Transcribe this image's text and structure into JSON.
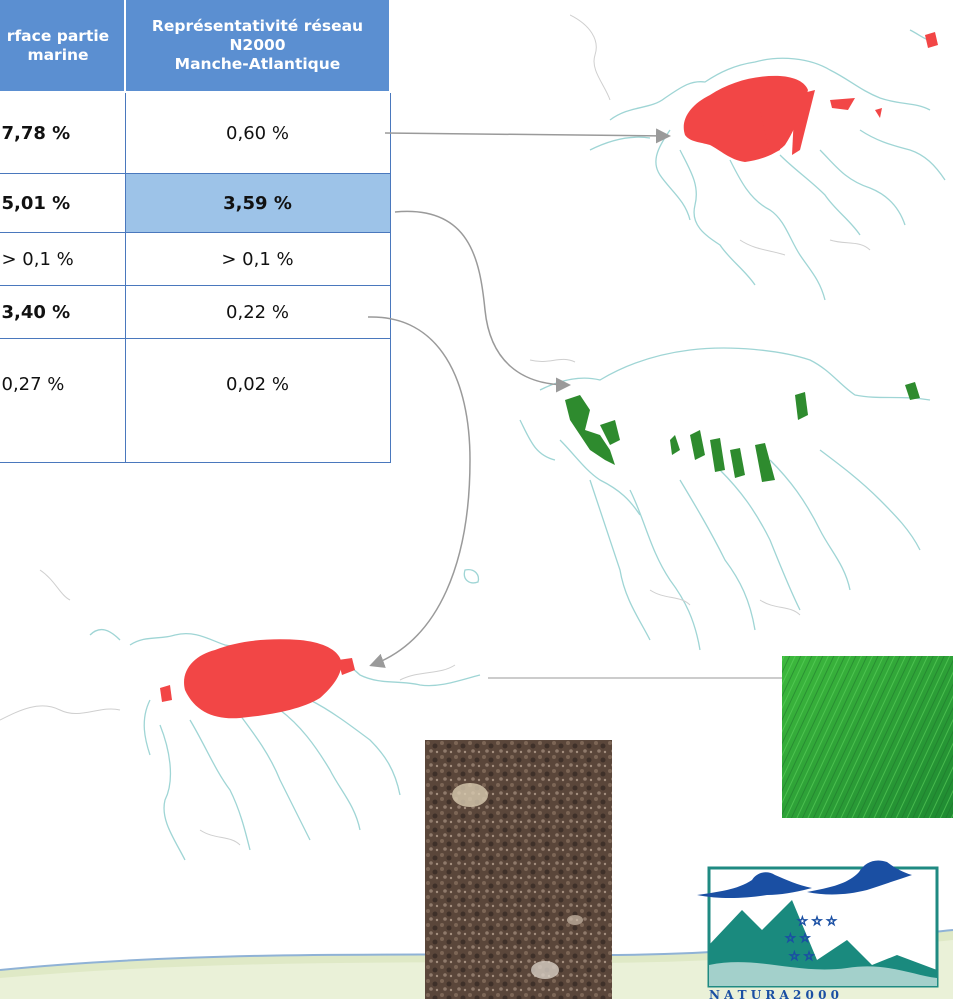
{
  "table": {
    "headers": [
      "rface partie\nmarine",
      "Représentativité réseau\nN2000\nManche-Atlantique"
    ],
    "rows": [
      {
        "col1": "7,78 %",
        "col2": "0,60 %"
      },
      {
        "col1": "5,01 %",
        "col2": "3,59 %"
      },
      {
        "col1": "> 0,1 %",
        "col2": "> 0,1 %"
      },
      {
        "col1": "3,40 %",
        "col2": "0,22 %"
      },
      {
        "col1": "0,27 %",
        "col2": "0,02 %"
      }
    ]
  },
  "logo": {
    "text": "N A T U R A 2 0 0 0"
  },
  "colors": {
    "table_header": "#5b8fd1",
    "table_border": "#4a78bd",
    "highlight_cell": "#9dc3e8",
    "habitat_red": "#f24646",
    "habitat_green": "#2e8b2e",
    "coastline": "#9fd5d5",
    "arrow": "#9a9a9a"
  }
}
